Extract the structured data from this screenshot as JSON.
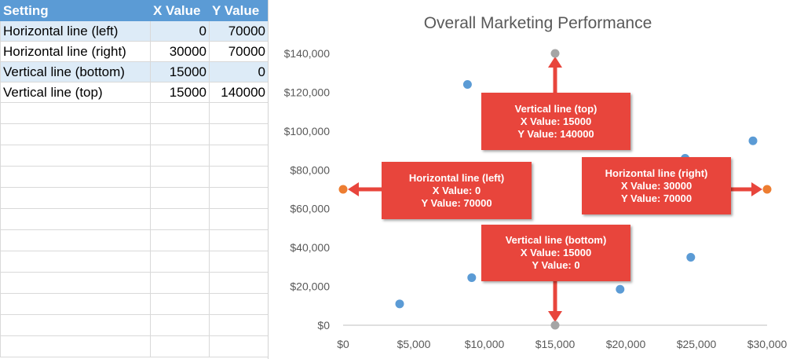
{
  "sheet": {
    "headers": [
      "Setting",
      "X Value",
      "Y Value"
    ],
    "rows": [
      {
        "setting": "Horizontal line (left)",
        "x": "0",
        "y": "70000"
      },
      {
        "setting": "Horizontal line (right)",
        "x": "30000",
        "y": "70000"
      },
      {
        "setting": "Vertical line (bottom)",
        "x": "15000",
        "y": "0"
      },
      {
        "setting": "Vertical line (top)",
        "x": "15000",
        "y": "140000"
      }
    ]
  },
  "chart_data": {
    "type": "scatter",
    "title": "Overall Marketing Performance",
    "xlim": [
      0,
      30000
    ],
    "ylim": [
      0,
      140000
    ],
    "xticks": [
      "$0",
      "$5,000",
      "$10,000",
      "$15,000",
      "$20,000",
      "$25,000",
      "$30,000"
    ],
    "yticks": [
      "$0",
      "$20,000",
      "$40,000",
      "$60,000",
      "$80,000",
      "$100,000",
      "$120,000",
      "$140,000"
    ],
    "grid": false,
    "series": [
      {
        "color": "#5b9bd5",
        "points": [
          [
            4000,
            11000
          ],
          [
            8800,
            124000
          ],
          [
            9100,
            24500
          ],
          [
            19600,
            18500
          ],
          [
            24200,
            86000
          ],
          [
            24600,
            35000
          ],
          [
            29000,
            95000
          ]
        ]
      },
      {
        "color": "#ed7d31",
        "points": [
          [
            0,
            70000
          ],
          [
            30000,
            70000
          ]
        ]
      },
      {
        "color": "#a5a5a5",
        "points": [
          [
            15000,
            0
          ],
          [
            15000,
            140000
          ]
        ]
      }
    ],
    "annotations": [
      {
        "id": "top",
        "lines": [
          "Vertical line (top)",
          "X Value: 15000",
          "Y Value: 140000"
        ]
      },
      {
        "id": "left",
        "lines": [
          "Horizontal line (left)",
          "X Value: 0",
          "Y Value: 70000"
        ]
      },
      {
        "id": "right",
        "lines": [
          "Horizontal line (right)",
          "X Value: 30000",
          "Y Value: 70000"
        ]
      },
      {
        "id": "bottom",
        "lines": [
          "Vertical line (bottom)",
          "X Value: 15000",
          "Y Value: 0"
        ]
      }
    ],
    "annotation_color": "#e8453c"
  }
}
